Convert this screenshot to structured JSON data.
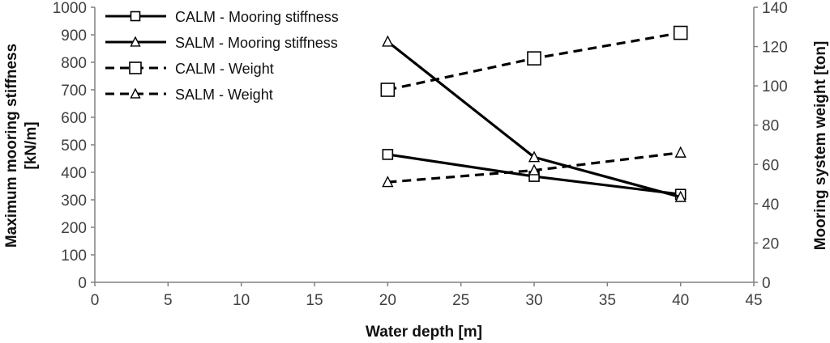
{
  "chart_data": {
    "type": "line",
    "title": "",
    "xlabel": "Water depth [m]",
    "ylabel_left": "Maximum mooring stiffness [kN/m]",
    "ylabel_left_lines": [
      "Maximum mooring stiffness",
      "[kN/m]"
    ],
    "ylabel_right": "Mooring system weight [ton]",
    "xlim": [
      0,
      45
    ],
    "ylim_left": [
      0,
      1000
    ],
    "ylim_right": [
      0,
      140
    ],
    "xticks": [
      "0",
      "5",
      "10",
      "15",
      "20",
      "25",
      "30",
      "35",
      "40",
      "45"
    ],
    "yticks_left": [
      "0",
      "100",
      "200",
      "300",
      "400",
      "500",
      "600",
      "700",
      "800",
      "900",
      "1000"
    ],
    "yticks_right": [
      "0",
      "20",
      "40",
      "60",
      "80",
      "100",
      "120",
      "140"
    ],
    "grid": false,
    "legend_position": "top-left",
    "series": [
      {
        "name": "CALM - Mooring stiffness",
        "axis": "left",
        "marker": "square",
        "dash": "solid",
        "x": [
          20,
          30,
          40
        ],
        "values": [
          465,
          385,
          320
        ]
      },
      {
        "name": "SALM - Mooring stiffness",
        "axis": "left",
        "marker": "triangle",
        "dash": "solid",
        "x": [
          20,
          30,
          40
        ],
        "values": [
          875,
          455,
          310
        ]
      },
      {
        "name": "CALM - Weight",
        "axis": "right",
        "marker": "square",
        "dash": "dashed",
        "x": [
          20,
          30,
          40
        ],
        "values": [
          98,
          114,
          127
        ]
      },
      {
        "name": "SALM - Weight",
        "axis": "right",
        "marker": "triangle",
        "dash": "dashed",
        "x": [
          20,
          30,
          40
        ],
        "values": [
          51,
          57,
          66
        ]
      }
    ],
    "colors": {
      "line": "#000000",
      "axis": "#808080",
      "tick_text": "#404040"
    }
  }
}
